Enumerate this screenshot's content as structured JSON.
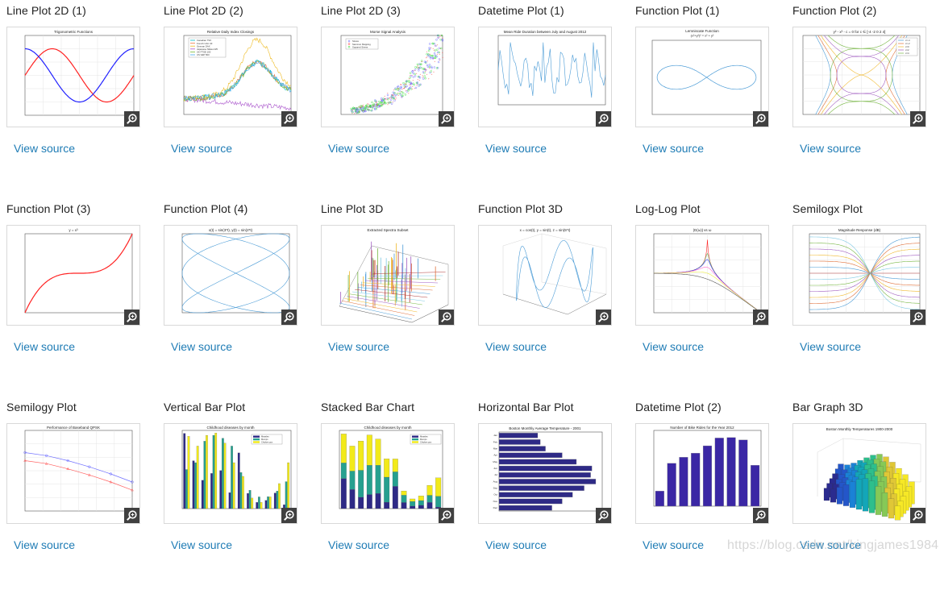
{
  "gallery": {
    "link_label": "View source",
    "items": [
      {
        "title": "Line Plot 2D (1)",
        "plot_title": "Trigonometric Functions",
        "xlabel": "angle",
        "ylabel": "sin(x) and cos(x)"
      },
      {
        "title": "Line Plot 2D (2)",
        "plot_title": "Relative Daily Index Closings",
        "xlabel": "Date",
        "ylabel": "Index Value",
        "legend": [
          "Canadian TSX",
          "French CAC 40",
          "German DAX",
          "Japanese Nikkei 225",
          "UK FTSE 100",
          "US S&P 500"
        ]
      },
      {
        "title": "Line Plot 2D (3)",
        "plot_title": "Morse Signal Analysis",
        "xlabel": "Dissimilarities",
        "ylabel": "Distances",
        "legend": [
          "Stress",
          "Sammon Mapping",
          "Squared Stress"
        ]
      },
      {
        "title": "Datetime Plot (1)",
        "plot_title": "Mean Ride Duration between July and August 2012",
        "xlabel": "Date",
        "ylabel": "Mean Ride Duration"
      },
      {
        "title": "Function Plot (1)",
        "plot_title": "Lemniscate Function",
        "plot_subtitle": "(x²+y²)² = x² + y²"
      },
      {
        "title": "Function Plot (2)",
        "plot_title": "y² - x³ - c = 0 for c ∈ [-4 -2 0 2 4]",
        "legend": [
          "c=-4",
          "c=-2",
          "c=0",
          "c=2",
          "c=4"
        ]
      },
      {
        "title": "Function Plot (3)",
        "plot_title": "y = x³",
        "xlabel": "x",
        "ylabel": "y"
      },
      {
        "title": "Function Plot (4)",
        "plot_title": "x(t) = sin(3*t), y(t) = sin(2*t)",
        "xlabel": "x",
        "ylabel": "y"
      },
      {
        "title": "Line Plot 3D",
        "plot_title": "Extracted Spectra Subset",
        "xlabel": "Mass/Charge (M/Z)",
        "ylabel": "Time",
        "zlabel": "Ion Spectra"
      },
      {
        "title": "Function Plot 3D",
        "plot_title": "x = cos(t), y = sin(t), z = sin(5*t)",
        "xlabel": "x",
        "ylabel": "y",
        "zlabel": "z"
      },
      {
        "title": "Log-Log Plot",
        "plot_title": "|G(ω)| vs ω",
        "xlabel": "ω",
        "ylabel": "|G(ω)|"
      },
      {
        "title": "Semilogx Plot",
        "plot_title": "Magnitude Response (dB)",
        "xlabel": "Frequency (kHz)",
        "ylabel": "Magnitude (dB)"
      },
      {
        "title": "Semilogy Plot",
        "plot_title": "Performance of Baseband QPSK",
        "xlabel": "Eb/No (dB)",
        "ylabel": "SER and BER"
      },
      {
        "title": "Vertical Bar Plot",
        "plot_title": "Childhood diseases by month",
        "xlabel": "Month",
        "ylabel": "Cases (in thousands)",
        "legend": [
          "Measles",
          "Mumps",
          "Chicken pox"
        ]
      },
      {
        "title": "Stacked Bar Chart",
        "plot_title": "Childhood diseases by month",
        "xlabel": "Month",
        "ylabel": "Cases (in thousands)",
        "legend": [
          "Measles",
          "Mumps",
          "Chicken pox"
        ]
      },
      {
        "title": "Horizontal Bar Plot",
        "plot_title": "Boston Monthly Average Temperature - 2001"
      },
      {
        "title": "Datetime Plot (2)",
        "plot_title": "Number of Bike Rides for the Year 2012",
        "xlabel": "Month",
        "ylabel": "Number of Rides"
      },
      {
        "title": "Bar Graph 3D",
        "plot_title": "Boston Monthly Temperatures 1900-2000",
        "xlabel": "Month",
        "ylabel": "Year",
        "zlabel": "Temperature"
      }
    ]
  },
  "watermark": "https://blog.csdn.net/kingjames1984",
  "icons": {
    "zoom": "zoom-in-magnifier-icon"
  },
  "colors": {
    "link": "#1f7cb5",
    "title": "#222222",
    "zoom_bg": "#404040",
    "card_border": "#d9d9d9"
  },
  "chart_data": [
    {
      "type": "line",
      "title": "Trigonometric Functions",
      "xlabel": "angle",
      "ylabel": "sin(x) and cos(x)",
      "xlim": [
        0,
        6.28
      ],
      "ylim": [
        -1.5,
        1.5
      ],
      "grid": true,
      "series": [
        {
          "name": "sin(x)",
          "color": "#ff0000"
        },
        {
          "name": "cos(x)",
          "color": "#0000ff"
        }
      ]
    },
    {
      "type": "line",
      "title": "Relative Daily Index Closings",
      "xlabel": "Date",
      "ylabel": "Index Value",
      "ylim": [
        0,
        5
      ],
      "x_ticks": [
        "1992",
        "1994",
        "1995",
        "1996",
        "1997",
        "1998",
        "1999",
        "2000",
        "2001",
        "2002",
        "2003"
      ],
      "legend": [
        "Canadian TSX",
        "French CAC 40",
        "German DAX",
        "Japanese Nikkei 225",
        "UK FTSE 100",
        "US S&P 500"
      ]
    },
    {
      "type": "scatter",
      "title": "Morse Signal Analysis",
      "xlabel": "Dissimilarities",
      "ylabel": "Distances",
      "xlim": [
        0,
        200
      ],
      "ylim": [
        0,
        300
      ],
      "legend": [
        "Stress",
        "Sammon Mapping",
        "Squared Stress"
      ]
    },
    {
      "type": "line",
      "title": "Mean Ride Duration between July and August 2012",
      "xlabel": "Date",
      "ylabel": "Mean Ride Duration",
      "ylim": [
        9,
        16
      ]
    },
    {
      "type": "line",
      "title": "Lemniscate Function",
      "xlim": [
        -1,
        1
      ],
      "ylim": [
        -1,
        1
      ]
    },
    {
      "type": "line",
      "title": "y² - x³ - c = 0",
      "xlim": [
        -3,
        3
      ],
      "ylim": [
        -3,
        3
      ],
      "legend": [
        "c=-4",
        "c=-2",
        "c=0",
        "c=2",
        "c=4"
      ]
    },
    {
      "type": "line",
      "title": "y = x³",
      "xlabel": "x",
      "ylabel": "y",
      "xlim": [
        -2,
        2
      ],
      "ylim": [
        -8,
        8
      ]
    },
    {
      "type": "line",
      "title": "x(t) = sin(3*t), y(t) = sin(2*t)",
      "xlabel": "x",
      "ylabel": "y",
      "xlim": [
        -1,
        1
      ],
      "ylim": [
        -1,
        1
      ]
    },
    {
      "type": "line",
      "title": "Extracted Spectra Subset",
      "xlabel": "Mass/Charge (M/Z)",
      "ylabel": "Time",
      "zlabel": "Ion Spectra"
    },
    {
      "type": "line",
      "title": "x = cos(t), y = sin(t), z = sin(5*t)",
      "zlim": [
        -1,
        1
      ]
    },
    {
      "type": "line",
      "title": "|G(ω)|",
      "xlabel": "ω",
      "ylabel": "|G(ω)|",
      "xscale": "log",
      "yscale": "log"
    },
    {
      "type": "line",
      "title": "Magnitude Response (dB)",
      "xlabel": "Frequency (kHz)",
      "ylabel": "Magnitude (dB)",
      "ylim": [
        -6,
        6
      ],
      "xscale": "log"
    },
    {
      "type": "line",
      "title": "Performance of Baseband QPSK",
      "xlabel": "Eb/No (dB)",
      "ylabel": "SER and BER",
      "yscale": "log",
      "x": [
        0,
        1,
        2,
        3,
        4,
        5
      ],
      "series": [
        {
          "name": "SER",
          "color": "#7070ff",
          "values": [
            0.15,
            0.115,
            0.075,
            0.044,
            0.024,
            0.012
          ]
        },
        {
          "name": "BER",
          "color": "#ff6060",
          "values": [
            0.075,
            0.058,
            0.037,
            0.022,
            0.012,
            0.006
          ]
        }
      ]
    },
    {
      "type": "bar",
      "title": "Childhood diseases by month",
      "xlabel": "Month",
      "ylabel": "Cases (in thousands)",
      "ylim": [
        0,
        4
      ],
      "categories": [
        "1",
        "2",
        "3",
        "4",
        "5",
        "6",
        "7",
        "8",
        "9",
        "10",
        "11",
        "12"
      ],
      "series": [
        {
          "name": "Measles",
          "color": "#2e2a86",
          "values": [
            3.85,
            2.45,
            1.45,
            1.8,
            1.95,
            0.82,
            2.85,
            0.78,
            0.32,
            0.42,
            0.8,
            0.2
          ]
        },
        {
          "name": "Mumps",
          "color": "#26a08f",
          "values": [
            2.0,
            2.35,
            3.45,
            3.75,
            3.6,
            3.2,
            1.85,
            0.94,
            0.6,
            0.61,
            0.9,
            1.38
          ]
        },
        {
          "name": "Chicken pox",
          "color": "#f2ea1a",
          "values": [
            3.7,
            3.2,
            3.75,
            3.87,
            3.35,
            2.35,
            1.65,
            0.54,
            0.32,
            0.6,
            1.28,
            2.35
          ]
        }
      ]
    },
    {
      "type": "bar",
      "stacked": true,
      "title": "Childhood diseases by month",
      "xlabel": "Month",
      "ylabel": "Cases (in thousands)",
      "ylim": [
        0,
        10
      ],
      "categories": [
        "1",
        "2",
        "3",
        "4",
        "5",
        "6",
        "7",
        "8",
        "9",
        "10",
        "11",
        "12"
      ],
      "series": [
        {
          "name": "Measles",
          "values": [
            3.85,
            2.45,
            1.45,
            1.8,
            1.95,
            0.82,
            2.85,
            0.78,
            0.32,
            0.42,
            0.8,
            0.2
          ]
        },
        {
          "name": "Mumps",
          "values": [
            2.0,
            2.35,
            3.45,
            3.75,
            3.6,
            3.2,
            1.85,
            0.94,
            0.6,
            0.61,
            0.9,
            1.38
          ]
        },
        {
          "name": "Chicken pox",
          "values": [
            3.7,
            3.2,
            3.75,
            3.87,
            3.35,
            2.35,
            1.65,
            0.54,
            0.32,
            0.6,
            1.28,
            2.35
          ]
        }
      ]
    },
    {
      "type": "bar",
      "orientation": "horizontal",
      "title": "Boston Monthly Average Temperature - 2001",
      "xlim": [
        0,
        80
      ],
      "categories": [
        "Jan",
        "Feb",
        "Mar",
        "Apr",
        "May",
        "Jun",
        "Jul",
        "Aug",
        "Sep",
        "Oct",
        "Nov",
        "Dec"
      ],
      "values": [
        30,
        32,
        36,
        49,
        60,
        72,
        71,
        75,
        66,
        57,
        49,
        41
      ]
    },
    {
      "type": "bar",
      "title": "Number of Bike Rides for the Year 2012",
      "xlabel": "Month",
      "ylabel": "Number of Rides",
      "ylim": [
        0,
        3.5
      ],
      "categories": [
        "Mar",
        "Apr",
        "May",
        "Jun",
        "Jul",
        "Aug",
        "Sep",
        "Oct",
        "Nov"
      ],
      "values": [
        0.7,
        1.98,
        2.26,
        2.45,
        2.79,
        3.15,
        3.17,
        3.06,
        1.89
      ]
    },
    {
      "type": "bar",
      "title": "Boston Monthly Temperatures 1900-2000",
      "xlabel": "Month",
      "ylabel": "Year",
      "zlabel": "Temperature"
    }
  ]
}
